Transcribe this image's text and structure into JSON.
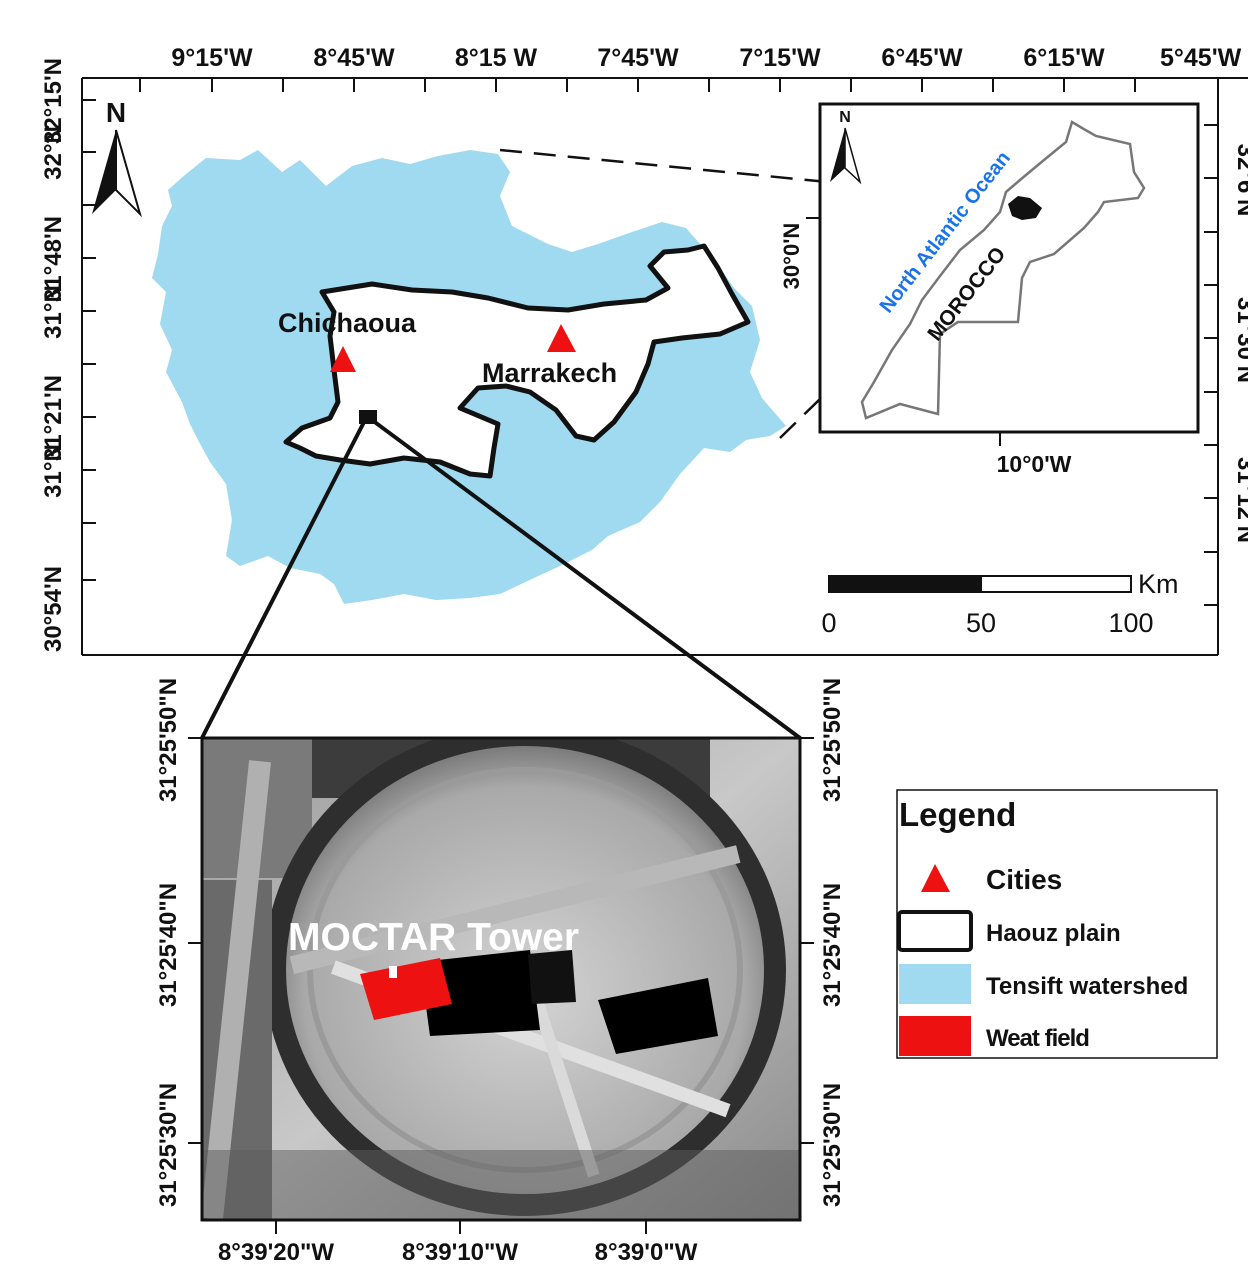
{
  "main_map": {
    "top_lon_labels": [
      "9°15'W",
      "8°45'W",
      "8°15 W",
      "7°45'W",
      "7°15'W",
      "6°45'W",
      "6°15'W",
      "5°45'W"
    ],
    "left_lat_labels": [
      "32°15'N",
      "32°N",
      "31°48'N",
      "31°N",
      "31°21'N",
      "31°N",
      "30°54'N"
    ],
    "right_lat_labels_partial": [
      "32°6'N",
      "31°30'N",
      "31°12'N"
    ],
    "north_arrow": "N",
    "cities": [
      {
        "name": "Chichaoua"
      },
      {
        "name": "Marrakech"
      }
    ],
    "colors": {
      "watershed": "#9fdaf0",
      "plain": "#ffffff",
      "city": "#ee1111",
      "outline": "#111111"
    }
  },
  "inset_map": {
    "north_arrow": "N",
    "lat_label": "30°0'N",
    "lon_label": "10°0'W",
    "ocean_label": "North Atlantic Ocean",
    "country_label": "MOROCCO",
    "ocean_label_color": "#1a73e8"
  },
  "scale_bar": {
    "unit": "Km",
    "labels": [
      "0",
      "50",
      "100"
    ]
  },
  "detail_map": {
    "tower_label": "MOCTAR Tower",
    "left_lat_labels": [
      "31°25'50\"N",
      "31°25'40\"N",
      "31°25'30\"N"
    ],
    "right_lat_labels": [
      "31°25'50\"N",
      "31°25'40\"N",
      "31°25'30\"N"
    ],
    "bottom_lon_labels": [
      "8°39'20\"W",
      "8°39'10\"W",
      "8°39'0\"W"
    ]
  },
  "legend": {
    "title": "Legend",
    "items": [
      {
        "label": "Cities",
        "symbol": "triangle",
        "color": "#ee1111"
      },
      {
        "label": "Haouz plain",
        "symbol": "outlined-box",
        "color": "#ffffff"
      },
      {
        "label": "Tensift watershed",
        "symbol": "filled-box",
        "color": "#9fdaf0"
      },
      {
        "label": "Weat field",
        "symbol": "filled-box",
        "color": "#ee1111"
      }
    ]
  }
}
